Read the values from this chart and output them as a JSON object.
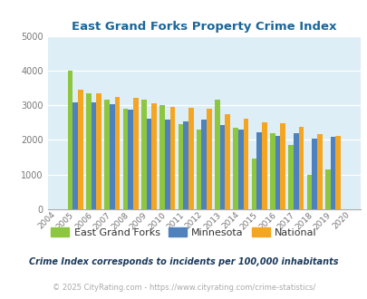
{
  "title": "East Grand Forks Property Crime Index",
  "years": [
    2004,
    2005,
    2006,
    2007,
    2008,
    2009,
    2010,
    2011,
    2012,
    2013,
    2014,
    2015,
    2016,
    2017,
    2018,
    2019,
    2020
  ],
  "egf": [
    null,
    4000,
    3350,
    3150,
    2900,
    3150,
    3000,
    2450,
    2300,
    3150,
    2350,
    1450,
    2200,
    1850,
    1000,
    1150,
    null
  ],
  "mn": [
    null,
    3075,
    3075,
    3025,
    2875,
    2625,
    2575,
    2525,
    2575,
    2425,
    2300,
    2225,
    2125,
    2200,
    2025,
    2100,
    null
  ],
  "nat": [
    null,
    3450,
    3350,
    3250,
    3225,
    3050,
    2950,
    2925,
    2900,
    2750,
    2625,
    2500,
    2475,
    2375,
    2175,
    2125,
    null
  ],
  "egf_color": "#8dc63f",
  "mn_color": "#4f81bd",
  "nat_color": "#f4a623",
  "bg_color": "#ddeef6",
  "ylim": [
    0,
    5000
  ],
  "yticks": [
    0,
    1000,
    2000,
    3000,
    4000,
    5000
  ],
  "legend_labels": [
    "East Grand Forks",
    "Minnesota",
    "National"
  ],
  "footnote1": "Crime Index corresponds to incidents per 100,000 inhabitants",
  "footnote2": "© 2025 CityRating.com - https://www.cityrating.com/crime-statistics/",
  "title_color": "#1a6699",
  "footnote1_color": "#1a3a5c",
  "footnote2_color": "#aaaaaa"
}
